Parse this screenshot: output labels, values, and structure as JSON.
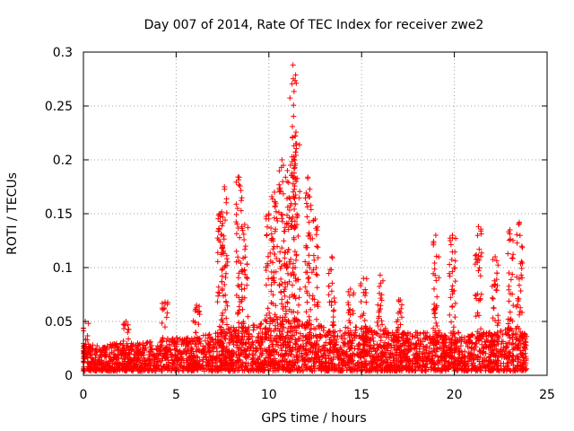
{
  "chart_data": {
    "type": "scatter",
    "title": "Day 007 of 2014, Rate Of TEC Index for receiver zwe2",
    "xlabel": "GPS time / hours",
    "ylabel": "ROTI / TECUs",
    "xlim": [
      0,
      25
    ],
    "ylim": [
      0,
      0.3
    ],
    "xticks": [
      "0",
      "5",
      "10",
      "15",
      "20",
      "25"
    ],
    "yticks": [
      "0",
      "0.05",
      "0.1",
      "0.15",
      "0.2",
      "0.25",
      "0.3"
    ],
    "grid": true,
    "marker": "+",
    "color": "#ff0000",
    "data_extent_hours": [
      0,
      23.9
    ],
    "baseline_envelope": [
      [
        0.0,
        0.03
      ],
      [
        1.0,
        0.028
      ],
      [
        2.0,
        0.03
      ],
      [
        3.0,
        0.03
      ],
      [
        4.0,
        0.032
      ],
      [
        5.0,
        0.035
      ],
      [
        6.0,
        0.035
      ],
      [
        7.0,
        0.04
      ],
      [
        8.0,
        0.045
      ],
      [
        9.0,
        0.045
      ],
      [
        10.0,
        0.055
      ],
      [
        11.0,
        0.055
      ],
      [
        12.0,
        0.05
      ],
      [
        13.0,
        0.045
      ],
      [
        14.0,
        0.045
      ],
      [
        15.0,
        0.045
      ],
      [
        16.0,
        0.045
      ],
      [
        17.0,
        0.04
      ],
      [
        18.0,
        0.04
      ],
      [
        19.0,
        0.04
      ],
      [
        20.0,
        0.04
      ],
      [
        21.0,
        0.04
      ],
      [
        22.0,
        0.04
      ],
      [
        23.0,
        0.045
      ],
      [
        23.9,
        0.04
      ]
    ],
    "spikes": [
      {
        "x": 0.1,
        "peak": 0.05
      },
      {
        "x": 2.3,
        "peak": 0.05
      },
      {
        "x": 4.4,
        "peak": 0.068
      },
      {
        "x": 6.1,
        "peak": 0.065
      },
      {
        "x": 7.4,
        "peak": 0.15
      },
      {
        "x": 7.6,
        "peak": 0.175
      },
      {
        "x": 8.4,
        "peak": 0.184
      },
      {
        "x": 8.7,
        "peak": 0.14
      },
      {
        "x": 10.0,
        "peak": 0.15
      },
      {
        "x": 10.3,
        "peak": 0.17
      },
      {
        "x": 10.7,
        "peak": 0.2
      },
      {
        "x": 11.0,
        "peak": 0.19
      },
      {
        "x": 11.3,
        "peak": 0.288
      },
      {
        "x": 11.5,
        "peak": 0.215
      },
      {
        "x": 12.1,
        "peak": 0.184
      },
      {
        "x": 12.5,
        "peak": 0.145
      },
      {
        "x": 13.4,
        "peak": 0.11
      },
      {
        "x": 14.4,
        "peak": 0.08
      },
      {
        "x": 15.1,
        "peak": 0.09
      },
      {
        "x": 16.0,
        "peak": 0.093
      },
      {
        "x": 17.0,
        "peak": 0.07
      },
      {
        "x": 19.0,
        "peak": 0.13
      },
      {
        "x": 19.9,
        "peak": 0.13
      },
      {
        "x": 21.3,
        "peak": 0.138
      },
      {
        "x": 22.2,
        "peak": 0.11
      },
      {
        "x": 23.0,
        "peak": 0.135
      },
      {
        "x": 23.5,
        "peak": 0.142
      }
    ]
  }
}
